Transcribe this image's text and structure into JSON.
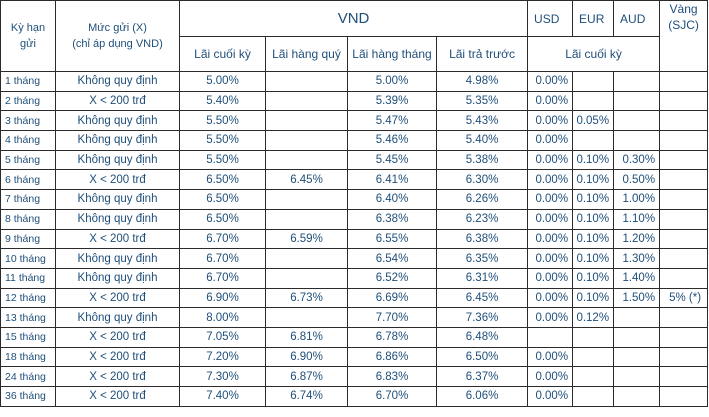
{
  "headers": {
    "term": "Kỳ hạn gửi",
    "amount_line1": "Mức gửi (X)",
    "amount_line2": "(chỉ áp dụng VND)",
    "vnd": "VND",
    "usd": "USD",
    "eur": "EUR",
    "aud": "AUD",
    "gold": "Vàng (SJC)",
    "vnd_cols": [
      "Lãi cuối kỳ",
      "Lãi hàng quý",
      "Lãi hàng tháng",
      "Lãi trả trước"
    ],
    "fx_sub": "Lãi cuối kỳ"
  },
  "rows": [
    {
      "term": "1 tháng",
      "cond": "Không quy định",
      "end": "5.00%",
      "quarterly": "",
      "monthly": "5.00%",
      "prepaid": "4.98%",
      "usd": "0.00%",
      "eur": "",
      "aud": "",
      "gold": ""
    },
    {
      "term": "2 tháng",
      "cond": "X < 200 trđ",
      "end": "5.40%",
      "quarterly": "",
      "monthly": "5.39%",
      "prepaid": "5.35%",
      "usd": "0.00%",
      "eur": "",
      "aud": "",
      "gold": ""
    },
    {
      "term": "3 tháng",
      "cond": "Không quy định",
      "end": "5.50%",
      "quarterly": "",
      "monthly": "5.47%",
      "prepaid": "5.43%",
      "usd": "0.00%",
      "eur": "0.05%",
      "aud": "",
      "gold": ""
    },
    {
      "term": "4 tháng",
      "cond": "Không quy định",
      "end": "5.50%",
      "quarterly": "",
      "monthly": "5.46%",
      "prepaid": "5.40%",
      "usd": "0.00%",
      "eur": "",
      "aud": "",
      "gold": ""
    },
    {
      "term": "5 tháng",
      "cond": "Không quy định",
      "end": "5.50%",
      "quarterly": "",
      "monthly": "5.45%",
      "prepaid": "5.38%",
      "usd": "0.00%",
      "eur": "0.10%",
      "aud": "0.30%",
      "gold": ""
    },
    {
      "term": "6 tháng",
      "cond": "X < 200 trđ",
      "end": "6.50%",
      "quarterly": "6.45%",
      "monthly": "6.41%",
      "prepaid": "6.30%",
      "usd": "0.00%",
      "eur": "0.10%",
      "aud": "0.50%",
      "gold": ""
    },
    {
      "term": "7 tháng",
      "cond": "Không quy định",
      "end": "6.50%",
      "quarterly": "",
      "monthly": "6.40%",
      "prepaid": "6.26%",
      "usd": "0.00%",
      "eur": "0.10%",
      "aud": "1.00%",
      "gold": ""
    },
    {
      "term": "8 tháng",
      "cond": "Không quy định",
      "end": "6.50%",
      "quarterly": "",
      "monthly": "6.38%",
      "prepaid": "6.23%",
      "usd": "0.00%",
      "eur": "0.10%",
      "aud": "1.10%",
      "gold": ""
    },
    {
      "term": "9 tháng",
      "cond": "X < 200 trđ",
      "end": "6.70%",
      "quarterly": "6.59%",
      "monthly": "6.55%",
      "prepaid": "6.38%",
      "usd": "0.00%",
      "eur": "0.10%",
      "aud": "1.20%",
      "gold": ""
    },
    {
      "term": "10 tháng",
      "cond": "Không quy định",
      "end": "6.70%",
      "quarterly": "",
      "monthly": "6.54%",
      "prepaid": "6.35%",
      "usd": "0.00%",
      "eur": "0.10%",
      "aud": "1.30%",
      "gold": ""
    },
    {
      "term": "11 tháng",
      "cond": "Không quy định",
      "end": "6.70%",
      "quarterly": "",
      "monthly": "6.52%",
      "prepaid": "6.31%",
      "usd": "0.00%",
      "eur": "0.10%",
      "aud": "1.40%",
      "gold": ""
    },
    {
      "term": "12 tháng",
      "cond": "X < 200 trđ",
      "end": "6.90%",
      "quarterly": "6.73%",
      "monthly": "6.69%",
      "prepaid": "6.45%",
      "usd": "0.00%",
      "eur": "0.10%",
      "aud": "1.50%",
      "gold": "5% (*)"
    },
    {
      "term": "13 tháng",
      "cond": "Không quy định",
      "end": "8.00%",
      "quarterly": "",
      "monthly": "7.70%",
      "prepaid": "7.36%",
      "usd": "0.00%",
      "eur": "0.12%",
      "aud": "",
      "gold": ""
    },
    {
      "term": "15 tháng",
      "cond": "X < 200 trđ",
      "end": "7.05%",
      "quarterly": "6.81%",
      "monthly": "6.78%",
      "prepaid": "6.48%",
      "usd": "",
      "eur": "",
      "aud": "",
      "gold": ""
    },
    {
      "term": "18 tháng",
      "cond": "X < 200 trđ",
      "end": "7.20%",
      "quarterly": "6.90%",
      "monthly": "6.86%",
      "prepaid": "6.50%",
      "usd": "0.00%",
      "eur": "",
      "aud": "",
      "gold": ""
    },
    {
      "term": "24 tháng",
      "cond": "X < 200 trđ",
      "end": "7.30%",
      "quarterly": "6.87%",
      "monthly": "6.83%",
      "prepaid": "6.37%",
      "usd": "0.00%",
      "eur": "",
      "aud": "",
      "gold": ""
    },
    {
      "term": "36  tháng",
      "cond": "X < 200 trđ",
      "end": "7.40%",
      "quarterly": "6.74%",
      "monthly": "6.70%",
      "prepaid": "6.06%",
      "usd": "0.00%",
      "eur": "",
      "aud": "",
      "gold": ""
    }
  ]
}
